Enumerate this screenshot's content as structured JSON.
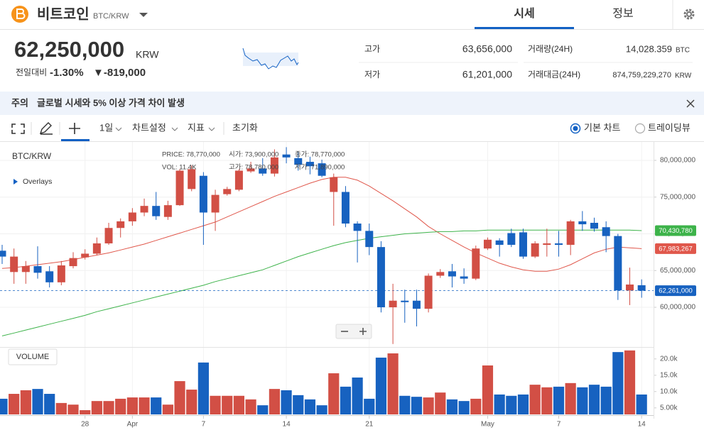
{
  "header": {
    "name": "비트코인",
    "ticker": "BTC/KRW",
    "tabs": [
      "시세",
      "정보"
    ]
  },
  "price": {
    "current": "62,250,000",
    "currency": "KRW",
    "change_label": "전일대비",
    "change_rate": "-1.30%",
    "change_amount": "▼-819,000"
  },
  "stats": [
    {
      "label": "고가",
      "value": "63,656,000"
    },
    {
      "label": "저가",
      "value": "61,201,000"
    },
    {
      "label": "거래량(24H)",
      "value": "14,028.359",
      "unit": "BTC"
    },
    {
      "label": "거래대금(24H)",
      "value": "874,759,229,270",
      "unit": "KRW"
    }
  ],
  "notice": {
    "tag": "주의",
    "text": "글로벌 시세와 5% 이상 가격 차이 발생"
  },
  "toolbar": {
    "items": [
      "1일",
      "차트설정",
      "지표",
      "초기화"
    ],
    "modes": [
      "기본 차트",
      "트레이딩뷰"
    ]
  },
  "chart_data": {
    "type": "candlestick",
    "title": "BTC/KRW",
    "overlay_label": "Overlays",
    "tooltip": [
      "PRICE: 78,770,000",
      "시가: 73,900,000",
      "종가: 78,770,000",
      "VOL: 11.4K",
      "고가: 78,780,000",
      "저가: 71,890,000"
    ],
    "categories": [
      null,
      null,
      null,
      null,
      null,
      null,
      null,
      "28",
      null,
      null,
      null,
      "Apr",
      null,
      null,
      null,
      null,
      null,
      "7",
      null,
      null,
      null,
      null,
      null,
      null,
      "14",
      null,
      null,
      null,
      null,
      null,
      null,
      "21",
      null,
      null,
      null,
      null,
      null,
      null,
      null,
      null,
      null,
      "May",
      null,
      null,
      null,
      null,
      null,
      "7",
      null,
      null,
      null,
      null,
      null,
      null,
      "14"
    ],
    "open": [
      67700000,
      64800000,
      64800000,
      65600000,
      64900000,
      63400000,
      65600000,
      66800000,
      67300000,
      68700000,
      70800000,
      71700000,
      72900000,
      73800000,
      72300000,
      73900000,
      76100000,
      77900000,
      72900000,
      75400000,
      76000000,
      78500000,
      78900000,
      78200000,
      80800000,
      80300000,
      79800000,
      79600000,
      75700000,
      75700000,
      71400000,
      70400000,
      68200000,
      60000000,
      60900000,
      60900000,
      59800000,
      64300000,
      64900000,
      64200000,
      63900000,
      68000000,
      69100000,
      70100000,
      70200000,
      66900000,
      68500000,
      68700000,
      68500000,
      71700000,
      71500000,
      70900000,
      69700000,
      62300000,
      63000000
    ],
    "high": [
      68500000,
      68000000,
      66300000,
      68300000,
      65600000,
      66300000,
      67500000,
      67900000,
      69500000,
      71500000,
      72100000,
      73500000,
      74800000,
      75700000,
      74500000,
      78800000,
      79300000,
      78400000,
      76000000,
      76400000,
      78800000,
      79800000,
      80300000,
      81500000,
      81800000,
      81100000,
      80500000,
      80100000,
      78200000,
      76500000,
      71700000,
      71400000,
      69000000,
      63200000,
      62400000,
      62400000,
      64600000,
      65200000,
      65900000,
      65300000,
      68400000,
      69500000,
      69400000,
      70700000,
      70700000,
      69000000,
      70700000,
      70400000,
      71900000,
      73100000,
      72200000,
      71700000,
      70000000,
      65400000,
      63800000
    ],
    "low": [
      65900000,
      63200000,
      63200000,
      63900000,
      62700000,
      63000000,
      65300000,
      66500000,
      67100000,
      68500000,
      69500000,
      71100000,
      72400000,
      71900000,
      71900000,
      73800000,
      75800000,
      68500000,
      70400000,
      75200000,
      75800000,
      78300000,
      77900000,
      77800000,
      79600000,
      78600000,
      78100000,
      77700000,
      71100000,
      70900000,
      66100000,
      67100000,
      59300000,
      55000000,
      57900000,
      57400000,
      59300000,
      64000000,
      62700000,
      63200000,
      63700000,
      67800000,
      66900000,
      68200000,
      66600000,
      66700000,
      66900000,
      66900000,
      67100000,
      70400000,
      70300000,
      67500000,
      61000000,
      60300000,
      61300000
    ],
    "close": [
      66900000,
      66900000,
      65600000,
      64700000,
      63400000,
      65700000,
      66700000,
      67300000,
      68700000,
      70800000,
      71700000,
      72900000,
      73800000,
      72400000,
      73900000,
      78600000,
      78800000,
      72900000,
      75300000,
      76100000,
      78600000,
      78900000,
      78200000,
      80400000,
      80400000,
      79400000,
      79200000,
      77900000,
      77700000,
      71400000,
      70400000,
      68200000,
      60000000,
      60900000,
      60700000,
      59800000,
      64300000,
      64800000,
      64200000,
      63900000,
      68000000,
      69200000,
      68500000,
      68500000,
      66900000,
      68700000,
      68700000,
      68500000,
      71700000,
      71300000,
      70700000,
      69700000,
      62300000,
      63100000,
      62261000
    ],
    "up_color": "#d24f45",
    "down_color": "#1762c0",
    "ylim": [
      54690000,
      82220000
    ],
    "yticks": [
      {
        "value": 60000000,
        "label": "60,000,000"
      },
      {
        "value": 65000000,
        "label": "65,000,000"
      },
      {
        "value": 70000000,
        "label": "70,000,000"
      },
      {
        "value": 75000000,
        "label": "75,000,000"
      },
      {
        "value": 80000000,
        "label": "80,000,000"
      }
    ],
    "grid": true,
    "moving_averages": [
      {
        "color": "#e0574b",
        "tag": {
          "value": 67983267,
          "label": "67,983,267"
        },
        "values": [
          65300000,
          65400000,
          65600000,
          65800000,
          66000000,
          66200000,
          66500000,
          66800000,
          67100000,
          67400000,
          67800000,
          68200000,
          68600000,
          69100000,
          69600000,
          70100000,
          70600000,
          71100000,
          71600000,
          72300000,
          73000000,
          73700000,
          74400000,
          75100000,
          75700000,
          76300000,
          76900000,
          77400000,
          77700000,
          77700000,
          77300000,
          76500000,
          75500000,
          74500000,
          73400000,
          72300000,
          71000000,
          70000000,
          69100000,
          68200000,
          67400000,
          66700000,
          66000000,
          65500000,
          65100000,
          64900000,
          64900000,
          65200000,
          65800000,
          66600000,
          67400000,
          67900000,
          68200000,
          68100000,
          67983267
        ]
      },
      {
        "color": "#3db34a",
        "tag": {
          "value": 70430780,
          "label": "70,430,780"
        },
        "values": [
          56100000,
          56500000,
          56900000,
          57300000,
          57700000,
          58100000,
          58500000,
          58900000,
          59400000,
          59800000,
          60200000,
          60600000,
          61000000,
          61400000,
          61800000,
          62200000,
          62600000,
          63000000,
          63500000,
          63900000,
          64300000,
          64700000,
          65100000,
          65700000,
          66300000,
          66900000,
          67400000,
          67900000,
          68400000,
          68800000,
          69100000,
          69400000,
          69600000,
          69800000,
          70000000,
          70100000,
          70200000,
          70300000,
          70300000,
          70400000,
          70400000,
          70500000,
          70500000,
          70500000,
          70500000,
          70500000,
          70500000,
          70500000,
          70500000,
          70500000,
          70500000,
          70500000,
          70500000,
          70500000,
          70430780
        ]
      }
    ],
    "current_price": {
      "value": 62261000,
      "label": "62,261,000",
      "color": "#1762c0"
    },
    "volume": {
      "title": "VOLUME",
      "values": [
        7800,
        9300,
        10400,
        10800,
        9300,
        6500,
        6000,
        4300,
        7100,
        7100,
        7800,
        8200,
        8200,
        8200,
        6000,
        13200,
        10600,
        18900,
        8700,
        8700,
        8700,
        7600,
        5800,
        10800,
        10400,
        8900,
        7600,
        5800,
        15600,
        11500,
        14300,
        7800,
        20400,
        21700,
        8700,
        8400,
        8200,
        9700,
        7600,
        7100,
        7800,
        18000,
        9100,
        8700,
        9100,
        12100,
        11300,
        11500,
        12600,
        11300,
        12100,
        11500,
        22100,
        22600,
        9100
      ],
      "ylim": [
        3000,
        23000
      ],
      "yticks": [
        {
          "value": 5000,
          "label": "5.00k"
        },
        {
          "value": 10000,
          "label": "10.0k"
        },
        {
          "value": 15000,
          "label": "15.0k"
        },
        {
          "value": 20000,
          "label": "20.0k"
        }
      ]
    }
  }
}
